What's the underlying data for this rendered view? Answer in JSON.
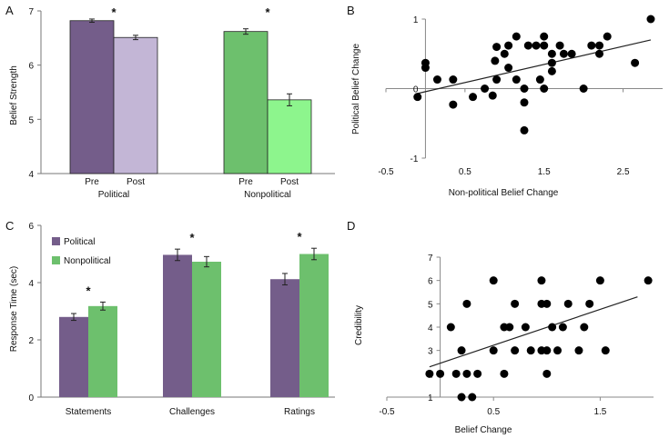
{
  "chart_data": [
    {
      "panel": "A",
      "type": "bar",
      "ylabel": "Belief Strength",
      "ylim": [
        4,
        7
      ],
      "yticks": [
        "4",
        "5",
        "6",
        "7"
      ],
      "groups": [
        {
          "label": "Political",
          "significance": "*",
          "bars": [
            {
              "label": "Pre",
              "value": 6.82,
              "error": 0.03,
              "color": "#745d8a"
            },
            {
              "label": "Post",
              "value": 6.51,
              "error": 0.04,
              "color": "#c3b6d6"
            }
          ]
        },
        {
          "label": "Nonpolitical",
          "significance": "*",
          "bars": [
            {
              "label": "Pre",
              "value": 6.62,
              "error": 0.05,
              "color": "#6dc06d"
            },
            {
              "label": "Post",
              "value": 5.36,
              "error": 0.11,
              "color": "#8df58d"
            }
          ]
        }
      ]
    },
    {
      "panel": "B",
      "type": "scatter",
      "xlabel": "Non-political Belief Change",
      "ylabel": "Political Belief Change",
      "xlim": [
        -0.5,
        3.0
      ],
      "ylim": [
        -1,
        1
      ],
      "xticks": [
        "-0.5",
        "0.5",
        "1.5",
        "2.5"
      ],
      "yticks": [
        "-1",
        "0",
        "1"
      ],
      "points": [
        [
          -0.1,
          -0.12
        ],
        [
          0.0,
          0.37
        ],
        [
          0.0,
          0.3
        ],
        [
          0.15,
          0.13
        ],
        [
          0.35,
          0.13
        ],
        [
          0.35,
          -0.23
        ],
        [
          0.6,
          -0.12
        ],
        [
          0.75,
          0.0
        ],
        [
          0.85,
          -0.1
        ],
        [
          0.88,
          0.4
        ],
        [
          0.9,
          0.6
        ],
        [
          0.9,
          0.13
        ],
        [
          1.0,
          0.5
        ],
        [
          1.05,
          0.3
        ],
        [
          1.05,
          0.62
        ],
        [
          1.15,
          0.75
        ],
        [
          1.15,
          0.13
        ],
        [
          1.25,
          -0.2
        ],
        [
          1.25,
          0.0
        ],
        [
          1.25,
          -0.6
        ],
        [
          1.3,
          0.62
        ],
        [
          1.4,
          0.62
        ],
        [
          1.45,
          0.13
        ],
        [
          1.5,
          0.75
        ],
        [
          1.5,
          0.62
        ],
        [
          1.5,
          0.0
        ],
        [
          1.6,
          0.5
        ],
        [
          1.6,
          0.37
        ],
        [
          1.6,
          0.25
        ],
        [
          1.7,
          0.62
        ],
        [
          1.75,
          0.5
        ],
        [
          1.85,
          0.5
        ],
        [
          2.0,
          0.0
        ],
        [
          2.1,
          0.62
        ],
        [
          2.2,
          0.62
        ],
        [
          2.2,
          0.5
        ],
        [
          2.3,
          0.75
        ],
        [
          2.65,
          0.37
        ],
        [
          2.85,
          1.0
        ]
      ],
      "trendline": [
        [
          -0.1,
          -0.07
        ],
        [
          2.85,
          0.7
        ]
      ]
    },
    {
      "panel": "C",
      "type": "bar",
      "ylabel": "Response Time (sec)",
      "ylim": [
        0,
        6
      ],
      "yticks": [
        "0",
        "2",
        "4",
        "6"
      ],
      "categories": [
        "Statements",
        "Challenges",
        "Ratings"
      ],
      "series": [
        {
          "name": "Political",
          "color": "#745d8a",
          "values": [
            2.8,
            4.97,
            4.12
          ],
          "errors": [
            0.12,
            0.2,
            0.2
          ]
        },
        {
          "name": "Nonpolitical",
          "color": "#6dc06d",
          "values": [
            3.18,
            4.73,
            5.0
          ],
          "errors": [
            0.14,
            0.18,
            0.2
          ]
        }
      ],
      "significance": [
        "*",
        "*",
        "*"
      ],
      "legend_position": "top-left"
    },
    {
      "panel": "D",
      "type": "scatter",
      "xlabel": "Belief Change",
      "ylabel": "Credibility",
      "xlim": [
        -0.5,
        2.0
      ],
      "ylim": [
        1,
        7
      ],
      "xticks": [
        "-0.5",
        "0.5",
        "1.5"
      ],
      "yticks": [
        "1",
        "2",
        "3",
        "4",
        "5",
        "6",
        "7"
      ],
      "points": [
        [
          -0.1,
          2
        ],
        [
          0.0,
          2
        ],
        [
          0.1,
          4
        ],
        [
          0.15,
          2
        ],
        [
          0.2,
          3
        ],
        [
          0.2,
          1
        ],
        [
          0.25,
          2
        ],
        [
          0.25,
          5
        ],
        [
          0.3,
          1
        ],
        [
          0.35,
          2
        ],
        [
          0.5,
          3
        ],
        [
          0.5,
          6
        ],
        [
          0.6,
          2
        ],
        [
          0.6,
          4
        ],
        [
          0.65,
          4
        ],
        [
          0.7,
          5
        ],
        [
          0.7,
          3
        ],
        [
          0.8,
          4
        ],
        [
          0.85,
          3
        ],
        [
          0.95,
          6
        ],
        [
          0.95,
          5
        ],
        [
          0.95,
          3
        ],
        [
          1.0,
          5
        ],
        [
          1.0,
          3
        ],
        [
          1.0,
          2
        ],
        [
          1.05,
          4
        ],
        [
          1.1,
          3
        ],
        [
          1.15,
          4
        ],
        [
          1.2,
          5
        ],
        [
          1.3,
          3
        ],
        [
          1.35,
          4
        ],
        [
          1.4,
          5
        ],
        [
          1.5,
          6
        ],
        [
          1.55,
          3
        ],
        [
          1.95,
          6
        ]
      ],
      "trendline": [
        [
          -0.1,
          2.3
        ],
        [
          1.85,
          5.3
        ]
      ]
    }
  ]
}
